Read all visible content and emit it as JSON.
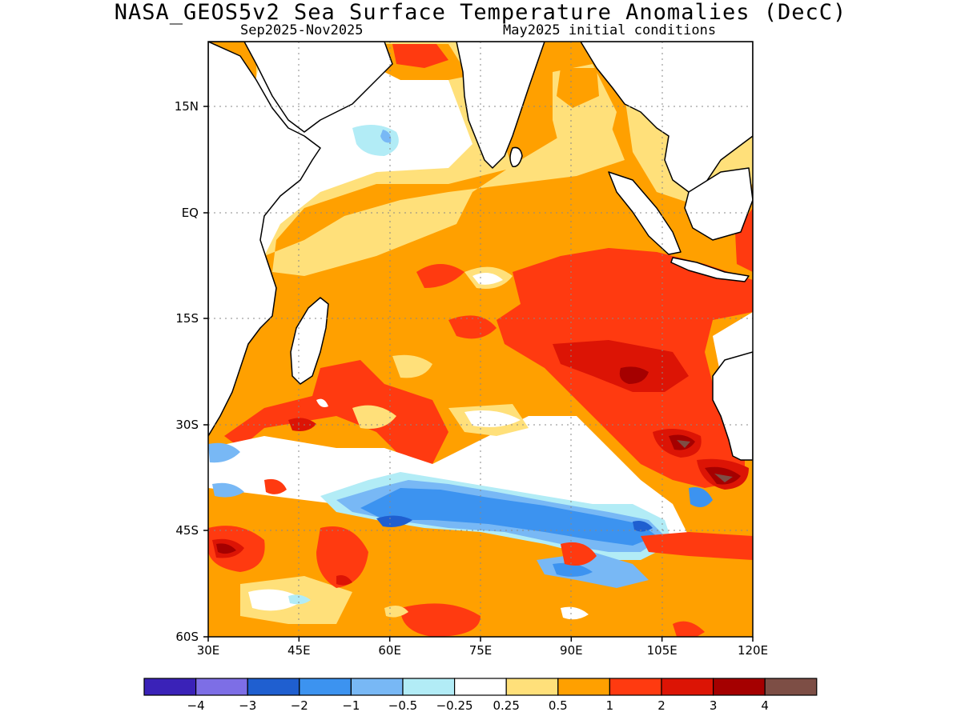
{
  "header": {
    "title": "NASA_GEOS5v2 Sea Surface Temperature Anomalies (DecC)",
    "period": "Sep2025-Nov2025",
    "init": "May2025 initial conditions"
  },
  "map": {
    "lon_range": [
      30,
      120
    ],
    "lat_range": [
      -60,
      24
    ],
    "lon_ticks": [
      "30E",
      "45E",
      "60E",
      "75E",
      "90E",
      "105E",
      "120E"
    ],
    "lat_ticks": [
      "15N",
      "EQ",
      "15S",
      "30S",
      "45S",
      "60S"
    ],
    "grid": true
  },
  "colorbar": {
    "colors": [
      "#3a22b8",
      "#7d6ee6",
      "#1f5fd0",
      "#3c93f0",
      "#78b8f5",
      "#b2ecf6",
      "#ffffff",
      "#ffe07a",
      "#ffa000",
      "#ff3a10",
      "#dc1405",
      "#a50000",
      "#7d4e45"
    ],
    "labels": [
      "-4",
      "-3",
      "-2",
      "-1",
      "-0.5",
      "-0.25",
      "0.25",
      "0.5",
      "1",
      "2",
      "3",
      "4"
    ]
  }
}
